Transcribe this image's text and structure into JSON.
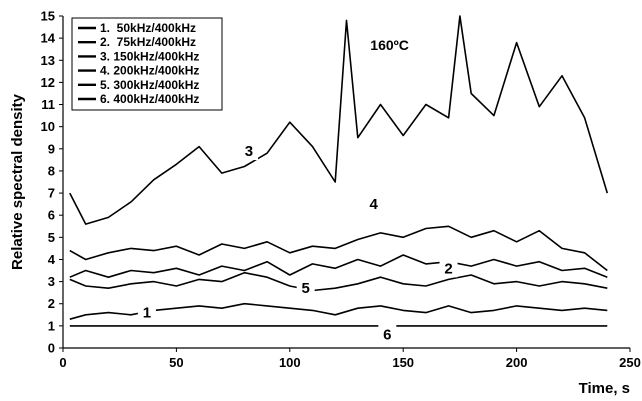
{
  "chart_data": {
    "type": "line",
    "title": "",
    "xlabel": "Time, s",
    "ylabel": "Relative spectral density",
    "annotation": "160ºC",
    "xlim": [
      0,
      250
    ],
    "ylim": [
      0,
      15
    ],
    "xticks": [
      0,
      50,
      100,
      150,
      200,
      250
    ],
    "yticks": [
      0,
      1,
      2,
      3,
      4,
      5,
      6,
      7,
      8,
      9,
      10,
      11,
      12,
      13,
      14,
      15
    ],
    "grid": false,
    "legend_position": "top-left",
    "colors": {
      "line": "#000000",
      "background": "#ffffff"
    },
    "series": [
      {
        "name": "1.  50kHz/400kHz",
        "label": "1",
        "x": [
          3,
          10,
          20,
          30,
          40,
          50,
          60,
          70,
          80,
          90,
          100,
          110,
          120,
          130,
          140,
          150,
          160,
          170,
          180,
          190,
          200,
          210,
          220,
          230,
          240
        ],
        "values": [
          1.3,
          1.5,
          1.6,
          1.5,
          1.7,
          1.8,
          1.9,
          1.8,
          2.0,
          1.9,
          1.8,
          1.7,
          1.5,
          1.8,
          1.9,
          1.7,
          1.6,
          1.9,
          1.6,
          1.7,
          1.9,
          1.8,
          1.7,
          1.8,
          1.7
        ]
      },
      {
        "name": "2.  75kHz/400kHz",
        "label": "2",
        "x": [
          3,
          10,
          20,
          30,
          40,
          50,
          60,
          70,
          80,
          90,
          100,
          110,
          120,
          130,
          140,
          150,
          160,
          170,
          180,
          190,
          200,
          210,
          220,
          230,
          240
        ],
        "values": [
          3.1,
          2.8,
          2.7,
          2.9,
          3.0,
          2.8,
          3.1,
          3.0,
          3.4,
          3.2,
          2.8,
          2.6,
          2.7,
          2.9,
          3.2,
          2.9,
          2.8,
          3.1,
          3.3,
          2.9,
          3.0,
          2.8,
          3.0,
          2.9,
          2.7
        ]
      },
      {
        "name": "3. 150kHz/400kHz",
        "label": "3",
        "x": [
          3,
          10,
          20,
          30,
          40,
          50,
          60,
          70,
          80,
          90,
          100,
          110,
          120,
          125,
          130,
          140,
          150,
          160,
          170,
          175,
          180,
          190,
          200,
          210,
          220,
          230,
          240
        ],
        "values": [
          7.0,
          5.6,
          5.9,
          6.6,
          7.6,
          8.3,
          9.1,
          7.9,
          8.2,
          8.8,
          10.2,
          9.1,
          7.5,
          14.8,
          9.5,
          11.0,
          9.6,
          11.0,
          10.4,
          15.0,
          11.5,
          10.5,
          13.8,
          10.9,
          12.3,
          10.4,
          7.0
        ]
      },
      {
        "name": "4. 200kHz/400kHz",
        "label": "4",
        "x": [
          3,
          10,
          20,
          30,
          40,
          50,
          60,
          70,
          80,
          90,
          100,
          110,
          120,
          130,
          140,
          150,
          160,
          170,
          180,
          190,
          200,
          210,
          220,
          230,
          240
        ],
        "values": [
          4.4,
          4.0,
          4.3,
          4.5,
          4.4,
          4.6,
          4.2,
          4.7,
          4.5,
          4.8,
          4.3,
          4.6,
          4.5,
          4.9,
          5.2,
          5.0,
          5.4,
          5.5,
          5.0,
          5.3,
          4.8,
          5.3,
          4.5,
          4.3,
          3.5
        ]
      },
      {
        "name": "5. 300kHz/400kHz",
        "label": "5",
        "x": [
          3,
          10,
          20,
          30,
          40,
          50,
          60,
          70,
          80,
          90,
          100,
          110,
          120,
          130,
          140,
          150,
          160,
          170,
          180,
          190,
          200,
          210,
          220,
          230,
          240
        ],
        "values": [
          3.2,
          3.5,
          3.2,
          3.5,
          3.4,
          3.6,
          3.3,
          3.7,
          3.5,
          3.9,
          3.3,
          3.8,
          3.6,
          4.0,
          3.7,
          4.2,
          3.8,
          3.9,
          3.7,
          4.0,
          3.7,
          3.9,
          3.5,
          3.6,
          3.2
        ]
      },
      {
        "name": "6. 400kHz/400kHz",
        "label": "6",
        "x": [
          3,
          240
        ],
        "values": [
          1.0,
          1.0
        ]
      }
    ]
  }
}
